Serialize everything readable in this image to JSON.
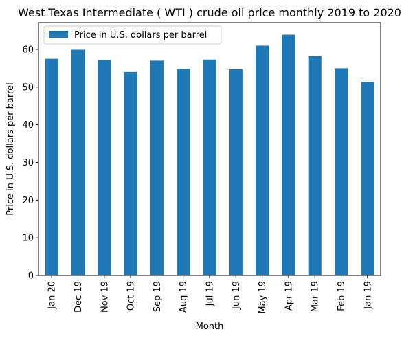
{
  "chart_data": {
    "type": "bar",
    "title": "West Texas Intermediate ( WTI ) crude oil price monthly 2019 to 2020",
    "xlabel": "Month",
    "ylabel": "Price in U.S. dollars per barrel",
    "categories": [
      "Jan 20",
      "Dec 19",
      "Nov 19",
      "Oct 19",
      "Sep 19",
      "Aug 19",
      "Jul 19",
      "Jun 19",
      "May 19",
      "Apr 19",
      "Mar 19",
      "Feb 19",
      "Jan 19"
    ],
    "series": [
      {
        "name": "Price in U.S. dollars per barrel",
        "values": [
          57.5,
          59.9,
          57.1,
          54.0,
          57.0,
          54.8,
          57.3,
          54.7,
          61.0,
          63.9,
          58.2,
          55.0,
          51.4
        ]
      }
    ],
    "ylim": [
      0,
      67.1
    ],
    "yticks": [
      0,
      10,
      20,
      30,
      40,
      50,
      60
    ],
    "grid": false,
    "legend_position": "top-left",
    "colors": {
      "bar": "#1f77b4"
    }
  }
}
